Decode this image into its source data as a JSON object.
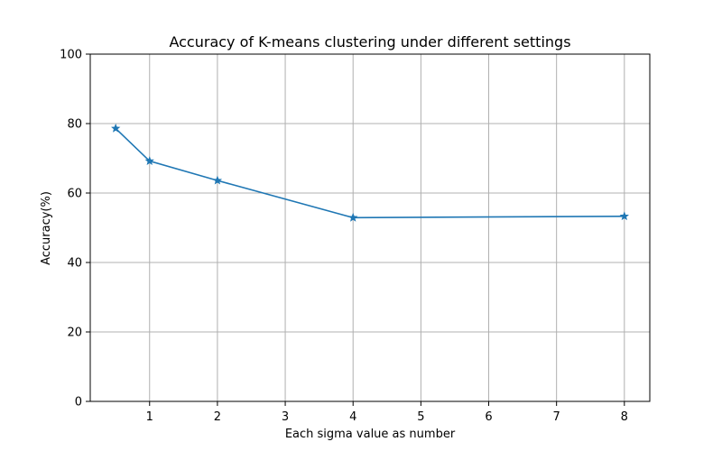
{
  "chart_data": {
    "type": "line",
    "title": "Accuracy of K-means clustering under different settings",
    "xlabel": "Each sigma value as number",
    "ylabel": "Accuracy(%)",
    "xlim": [
      0.125,
      8.375
    ],
    "ylim": [
      0,
      100
    ],
    "xticks": [
      1,
      2,
      3,
      4,
      5,
      6,
      7,
      8
    ],
    "yticks": [
      0,
      20,
      40,
      60,
      80,
      100
    ],
    "grid": true,
    "marker": "star",
    "color": "#1f77b4",
    "series": [
      {
        "x": [
          0.5,
          1,
          2,
          4,
          8
        ],
        "y": [
          78.6,
          69.2,
          63.6,
          52.9,
          53.3
        ]
      }
    ]
  }
}
